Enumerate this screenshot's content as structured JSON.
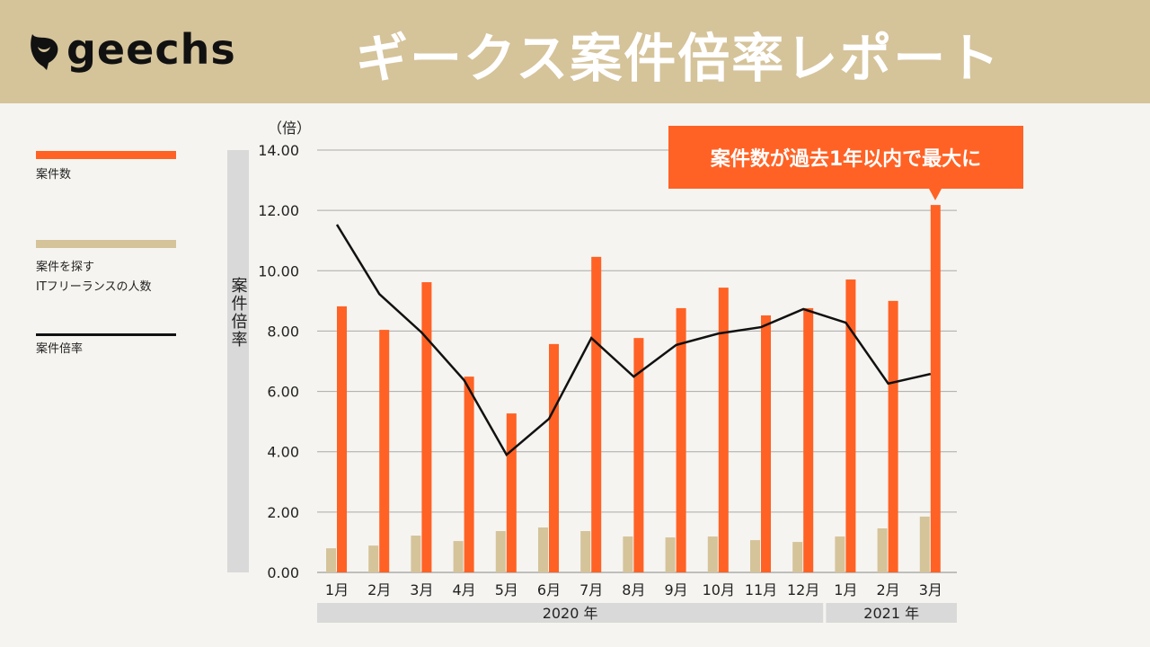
{
  "header": {
    "logo": "geechs",
    "title": "ギークス案件倍率レポート"
  },
  "legend": [
    {
      "label": "案件数",
      "color": "#ff6224"
    },
    {
      "label": "案件を探す\nITフリーランスの人数",
      "color": "#d5c39a"
    },
    {
      "label": "案件倍率",
      "color": "#111111"
    }
  ],
  "callout": "案件数が過去1年以内で最大に",
  "chart_data": {
    "type": "bar+line",
    "ylabel": "案件倍率",
    "yunit": "（倍）",
    "ylim": [
      0,
      14
    ],
    "yticks": [
      "0.00",
      "2.00",
      "4.00",
      "6.00",
      "8.00",
      "10.00",
      "12.00",
      "14.00"
    ],
    "categories": [
      "1月",
      "2月",
      "3月",
      "4月",
      "5月",
      "6月",
      "7月",
      "8月",
      "9月",
      "10月",
      "11月",
      "12月",
      "1月",
      "2月",
      "3月"
    ],
    "year_groups": [
      {
        "label": "2020 年",
        "count": 12
      },
      {
        "label": "2021 年",
        "count": 3
      }
    ],
    "grid": true,
    "legend_position": "left",
    "series": [
      {
        "name": "案件数",
        "type": "bar",
        "color": "#ff6224",
        "values": [
          8.82,
          8.04,
          9.62,
          6.49,
          5.27,
          7.57,
          10.46,
          7.77,
          8.76,
          9.44,
          8.52,
          8.76,
          9.71,
          9.0,
          12.18
        ]
      },
      {
        "name": "案件を探す ITフリーランスの人数",
        "type": "bar",
        "color": "#d5c39a",
        "values": [
          0.8,
          0.89,
          1.22,
          1.04,
          1.37,
          1.49,
          1.37,
          1.19,
          1.16,
          1.19,
          1.07,
          1.01,
          1.19,
          1.46,
          1.85
        ]
      },
      {
        "name": "案件倍率",
        "type": "line",
        "color": "#111111",
        "values": [
          11.53,
          9.23,
          7.95,
          6.37,
          3.9,
          5.09,
          7.77,
          6.49,
          7.54,
          7.92,
          8.13,
          8.73,
          8.28,
          6.26,
          6.58
        ]
      }
    ]
  }
}
